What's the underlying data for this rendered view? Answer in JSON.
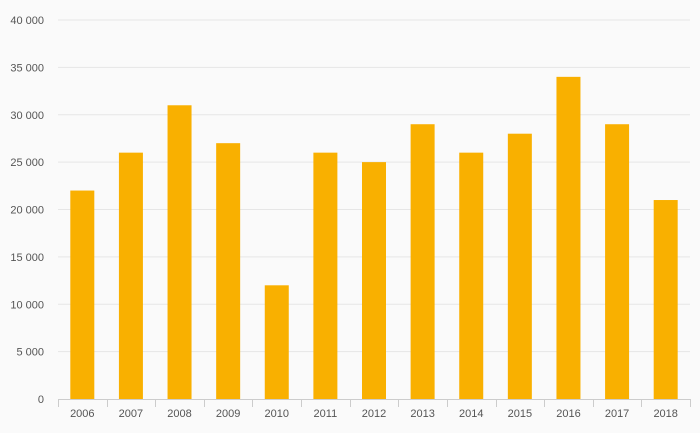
{
  "chart_data": {
    "type": "bar",
    "title": "",
    "xlabel": "",
    "ylabel": "",
    "categories": [
      "2006",
      "2007",
      "2008",
      "2009",
      "2010",
      "2011",
      "2012",
      "2013",
      "2014",
      "2015",
      "2016",
      "2017",
      "2018"
    ],
    "values": [
      22000,
      26000,
      31000,
      27000,
      12000,
      26000,
      25000,
      29000,
      26000,
      28000,
      34000,
      29000,
      21000
    ],
    "ylim": [
      0,
      40000
    ],
    "y_ticks": [
      0,
      5000,
      10000,
      15000,
      20000,
      25000,
      30000,
      35000,
      40000
    ],
    "y_tick_labels": [
      "0",
      "5 000",
      "10 000",
      "15 000",
      "20 000",
      "25 000",
      "30 000",
      "35 000",
      "40 000"
    ],
    "grid": true,
    "legend": "none",
    "bar_color": "#f9b000",
    "grid_color": "#e6e6e6",
    "axis_color": "#cccccc"
  }
}
